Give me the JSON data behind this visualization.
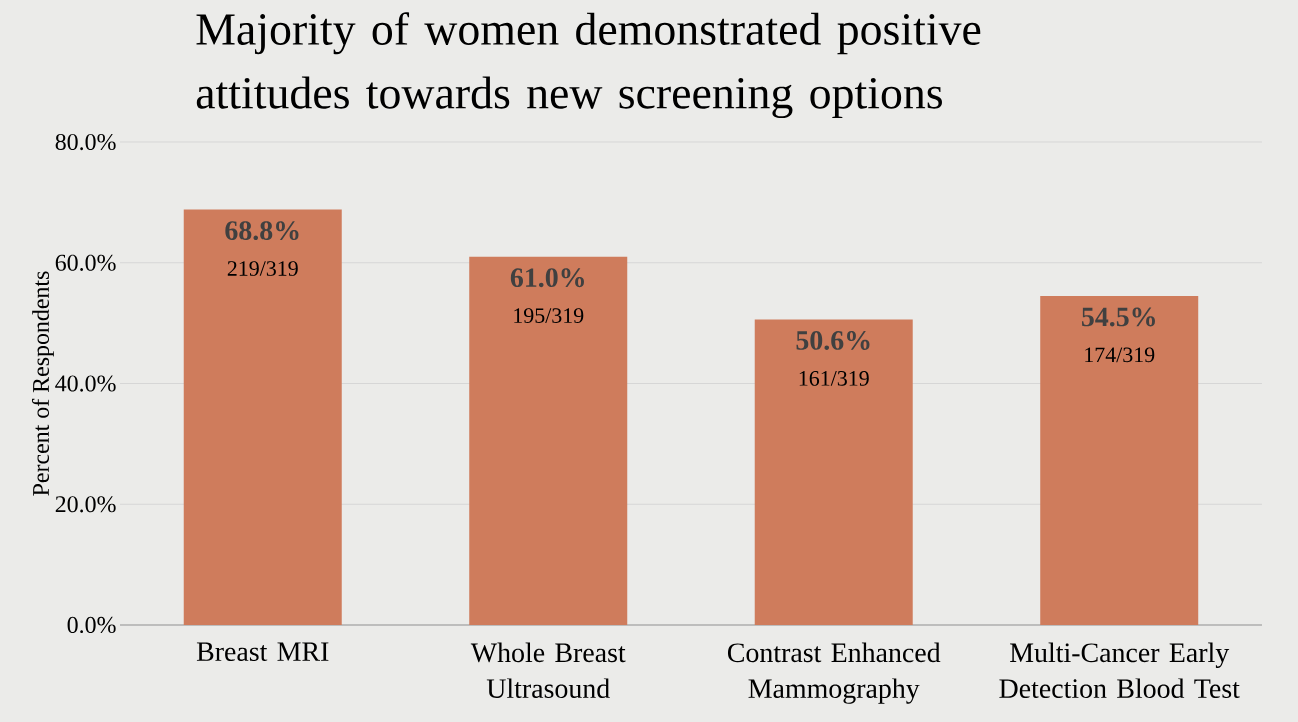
{
  "chart_data": {
    "type": "bar",
    "title": "Majority of women demonstrated positive attitudes towards new screening options",
    "ylabel": "Percent of Respondents",
    "categories": [
      "Breast MRI",
      "Whole Breast Ultrasound",
      "Contrast Enhanced Mammography",
      "Multi-Cancer Early Detection Blood Test"
    ],
    "values": [
      68.8,
      61.0,
      50.6,
      54.5
    ],
    "color": "#cf7c5c",
    "value_labels": [
      "68.8%",
      "61.0%",
      "50.6%",
      "54.5%"
    ],
    "annotations": [
      {
        "text": "219/319",
        "x": "Breast MRI",
        "y": 68.8
      },
      {
        "text": "195/319",
        "x": "Whole Breast Ultrasound",
        "y": 61.0
      },
      {
        "text": "161/319",
        "x": "Contrast Enhanced Mammography",
        "y": 50.6
      },
      {
        "text": "174/319",
        "x": "Multi-Cancer Early Detection Blood Test",
        "y": 54.5
      }
    ],
    "ylim": [
      0,
      80
    ],
    "yticks": [
      {
        "value": 0,
        "label": "0.0%"
      },
      {
        "value": 20,
        "label": "20.0%"
      },
      {
        "value": 40,
        "label": "40.0%"
      },
      {
        "value": 60,
        "label": "60.0%"
      },
      {
        "value": 80,
        "label": "80.0%"
      }
    ],
    "grid": "y"
  }
}
